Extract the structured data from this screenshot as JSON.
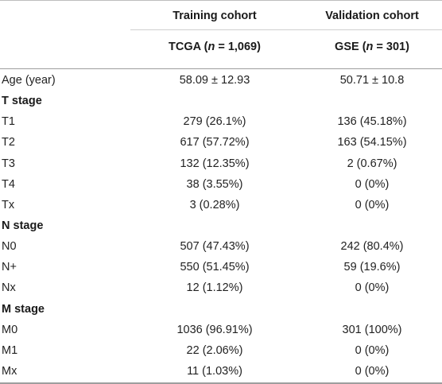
{
  "header": {
    "training_cohort": "Training cohort",
    "validation_cohort": "Validation cohort",
    "training_dataset": "TCGA (n = 1,069)",
    "validation_dataset": "GSE (n = 301)"
  },
  "rows": [
    {
      "label": "Age (year)",
      "training": "58.09 ± 12.93",
      "validation": "50.71 ± 10.8"
    },
    {
      "label": "T stage",
      "section": true
    },
    {
      "label": "T1",
      "training": "279 (26.1%)",
      "validation": "136 (45.18%)"
    },
    {
      "label": "T2",
      "training": "617 (57.72%)",
      "validation": "163 (54.15%)"
    },
    {
      "label": "T3",
      "training": "132 (12.35%)",
      "validation": "2 (0.67%)"
    },
    {
      "label": "T4",
      "training": "38 (3.55%)",
      "validation": "0 (0%)"
    },
    {
      "label": "Tx",
      "training": "3 (0.28%)",
      "validation": "0 (0%)"
    },
    {
      "label": "N stage",
      "section": true
    },
    {
      "label": "N0",
      "training": "507 (47.43%)",
      "validation": "242 (80.4%)"
    },
    {
      "label": "N+",
      "training": "550 (51.45%)",
      "validation": "59 (19.6%)"
    },
    {
      "label": "Nx",
      "training": "12 (1.12%)",
      "validation": "0 (0%)"
    },
    {
      "label": "M stage",
      "section": true
    },
    {
      "label": "M0",
      "training": "1036 (96.91%)",
      "validation": "301 (100%)"
    },
    {
      "label": "M1",
      "training": "22 (2.06%)",
      "validation": "0 (0%)"
    },
    {
      "label": "Mx",
      "training": "11 (1.03%)",
      "validation": "0 (0%)"
    }
  ]
}
